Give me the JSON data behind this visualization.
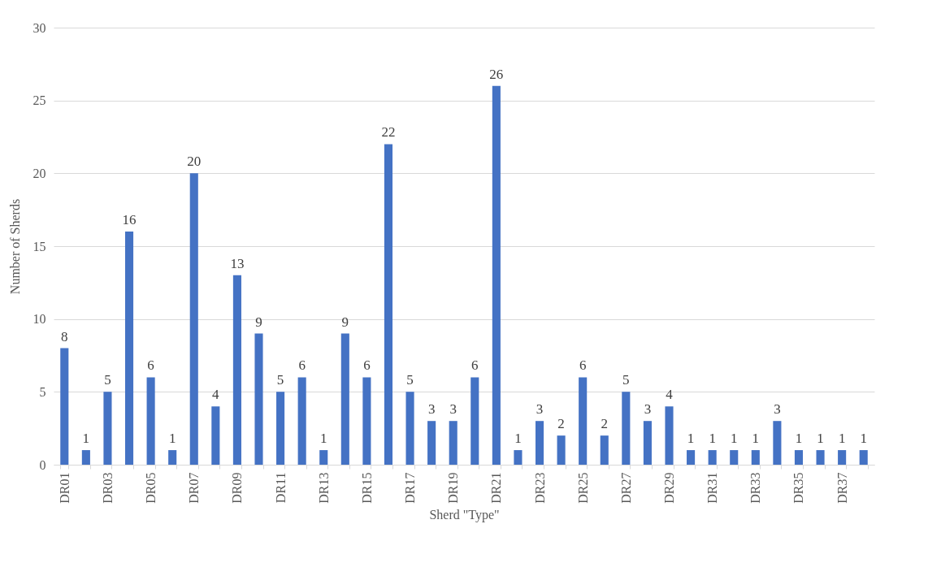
{
  "chart_data": {
    "type": "bar",
    "xlabel": "Sherd  \"Type\"",
    "ylabel": "Number of Sherds",
    "categories": [
      "DR01",
      null,
      "DR03",
      null,
      "DR05",
      null,
      "DR07",
      null,
      "DR09",
      null,
      "DR11",
      null,
      "DR13",
      null,
      "DR15",
      null,
      "DR17",
      null,
      "DR19",
      null,
      "DR21",
      null,
      "DR23",
      null,
      "DR25",
      null,
      "DR27",
      null,
      "DR29",
      null,
      "DR31",
      null,
      "DR33",
      null,
      "DR35",
      null,
      "DR37",
      null
    ],
    "values": [
      8,
      1,
      5,
      16,
      6,
      1,
      20,
      4,
      13,
      9,
      5,
      6,
      1,
      9,
      6,
      22,
      5,
      3,
      3,
      6,
      26,
      1,
      3,
      2,
      6,
      2,
      5,
      3,
      4,
      1,
      1,
      1,
      1,
      3,
      1,
      1,
      1,
      1
    ],
    "color": "#4472c4",
    "ylim": [
      0,
      30
    ],
    "yticks": [
      0,
      5,
      10,
      15,
      20,
      25,
      30
    ],
    "grid": "y",
    "data_labels": true
  }
}
